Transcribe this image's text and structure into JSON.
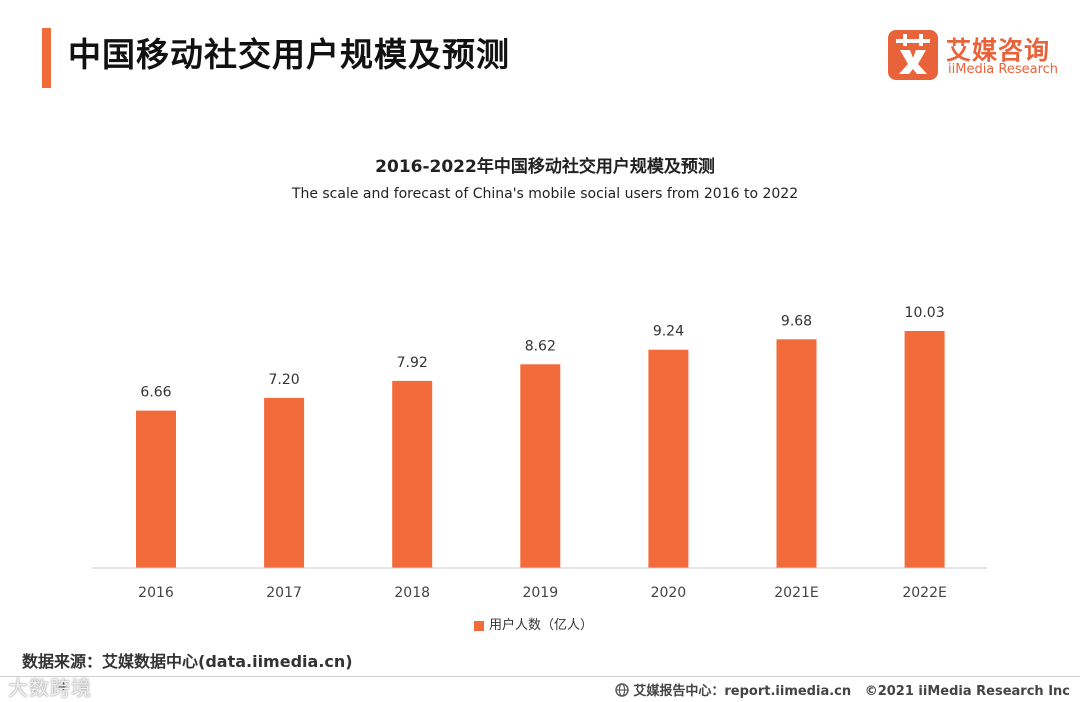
{
  "header": {
    "title": "中国移动社交用户规模及预测"
  },
  "logo": {
    "mark": "艾",
    "name_cn": "艾媒咨询",
    "name_en": "iiMedia Research"
  },
  "colors": {
    "accent": "#f26b3a",
    "bar": "#f26b3a",
    "logo": "#e8623a"
  },
  "chart_data": {
    "type": "bar",
    "title": "2016-2022年中国移动社交用户规模及预测",
    "subtitle": "The scale and forecast of China's mobile social users from 2016 to 2022",
    "categories": [
      "2016",
      "2017",
      "2018",
      "2019",
      "2020",
      "2021E",
      "2022E"
    ],
    "series": [
      {
        "name": "用户人数（亿人）",
        "values": [
          6.66,
          7.2,
          7.92,
          8.62,
          9.24,
          9.68,
          10.03
        ]
      }
    ],
    "value_labels": [
      "6.66",
      "7.20",
      "7.92",
      "8.62",
      "9.24",
      "9.68",
      "10.03"
    ],
    "ylim": [
      0,
      12
    ],
    "grid": false,
    "legend_position": "bottom"
  },
  "source": "数据来源：艾媒数据中心(data.iimedia.cn)",
  "footer": {
    "page_number": "4",
    "watermark": "大数跨境",
    "globe_icon": "globe-icon",
    "report_text": "艾媒报告中心：report.iimedia.cn",
    "copyright": "©2021  iiMedia Research  Inc"
  }
}
